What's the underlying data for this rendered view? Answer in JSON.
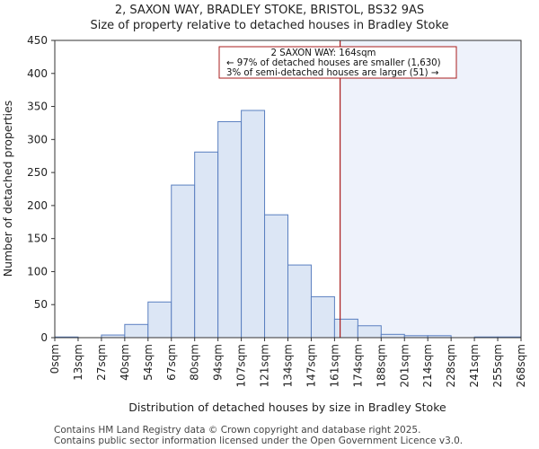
{
  "chart_data": {
    "type": "bar",
    "title_line1": "2, SAXON WAY, BRADLEY STOKE, BRISTOL, BS32 9AS",
    "title_line2": "Size of property relative to detached houses in Bradley Stoke",
    "xlabel": "Distribution of detached houses by size in Bradley Stoke",
    "ylabel": "Number of detached properties",
    "ylim": [
      0,
      450
    ],
    "yticks": [
      0,
      50,
      100,
      150,
      200,
      250,
      300,
      350,
      400,
      450
    ],
    "bin_edges": [
      0,
      13.4,
      26.8,
      40.2,
      53.6,
      67,
      80.4,
      93.8,
      107.2,
      120.6,
      134,
      147.4,
      160.8,
      174.2,
      187.6,
      201,
      214.4,
      227.8,
      241.2,
      254.6,
      268
    ],
    "xtick_labels": [
      "0sqm",
      "13sqm",
      "27sqm",
      "40sqm",
      "54sqm",
      "67sqm",
      "80sqm",
      "94sqm",
      "107sqm",
      "121sqm",
      "134sqm",
      "147sqm",
      "161sqm",
      "174sqm",
      "188sqm",
      "201sqm",
      "214sqm",
      "228sqm",
      "241sqm",
      "255sqm",
      "268sqm"
    ],
    "values": [
      1,
      0,
      4,
      20,
      54,
      231,
      281,
      327,
      344,
      186,
      110,
      62,
      28,
      18,
      5,
      3,
      3,
      0,
      1,
      1
    ],
    "marker_value": 164,
    "annotation": {
      "line1": "2 SAXON WAY: 164sqm",
      "line2": "← 97% of detached houses are smaller (1,630)",
      "line3": "3% of semi-detached houses are larger (51) →"
    },
    "colors": {
      "bar_fill": "#dce6f5",
      "bar_stroke": "#5a7fc0",
      "marker": "#aa1c1c",
      "highlight": "#eef2fb"
    }
  },
  "footer": {
    "line1": "Contains HM Land Registry data © Crown copyright and database right 2025.",
    "line2": "Contains public sector information licensed under the Open Government Licence v3.0."
  }
}
